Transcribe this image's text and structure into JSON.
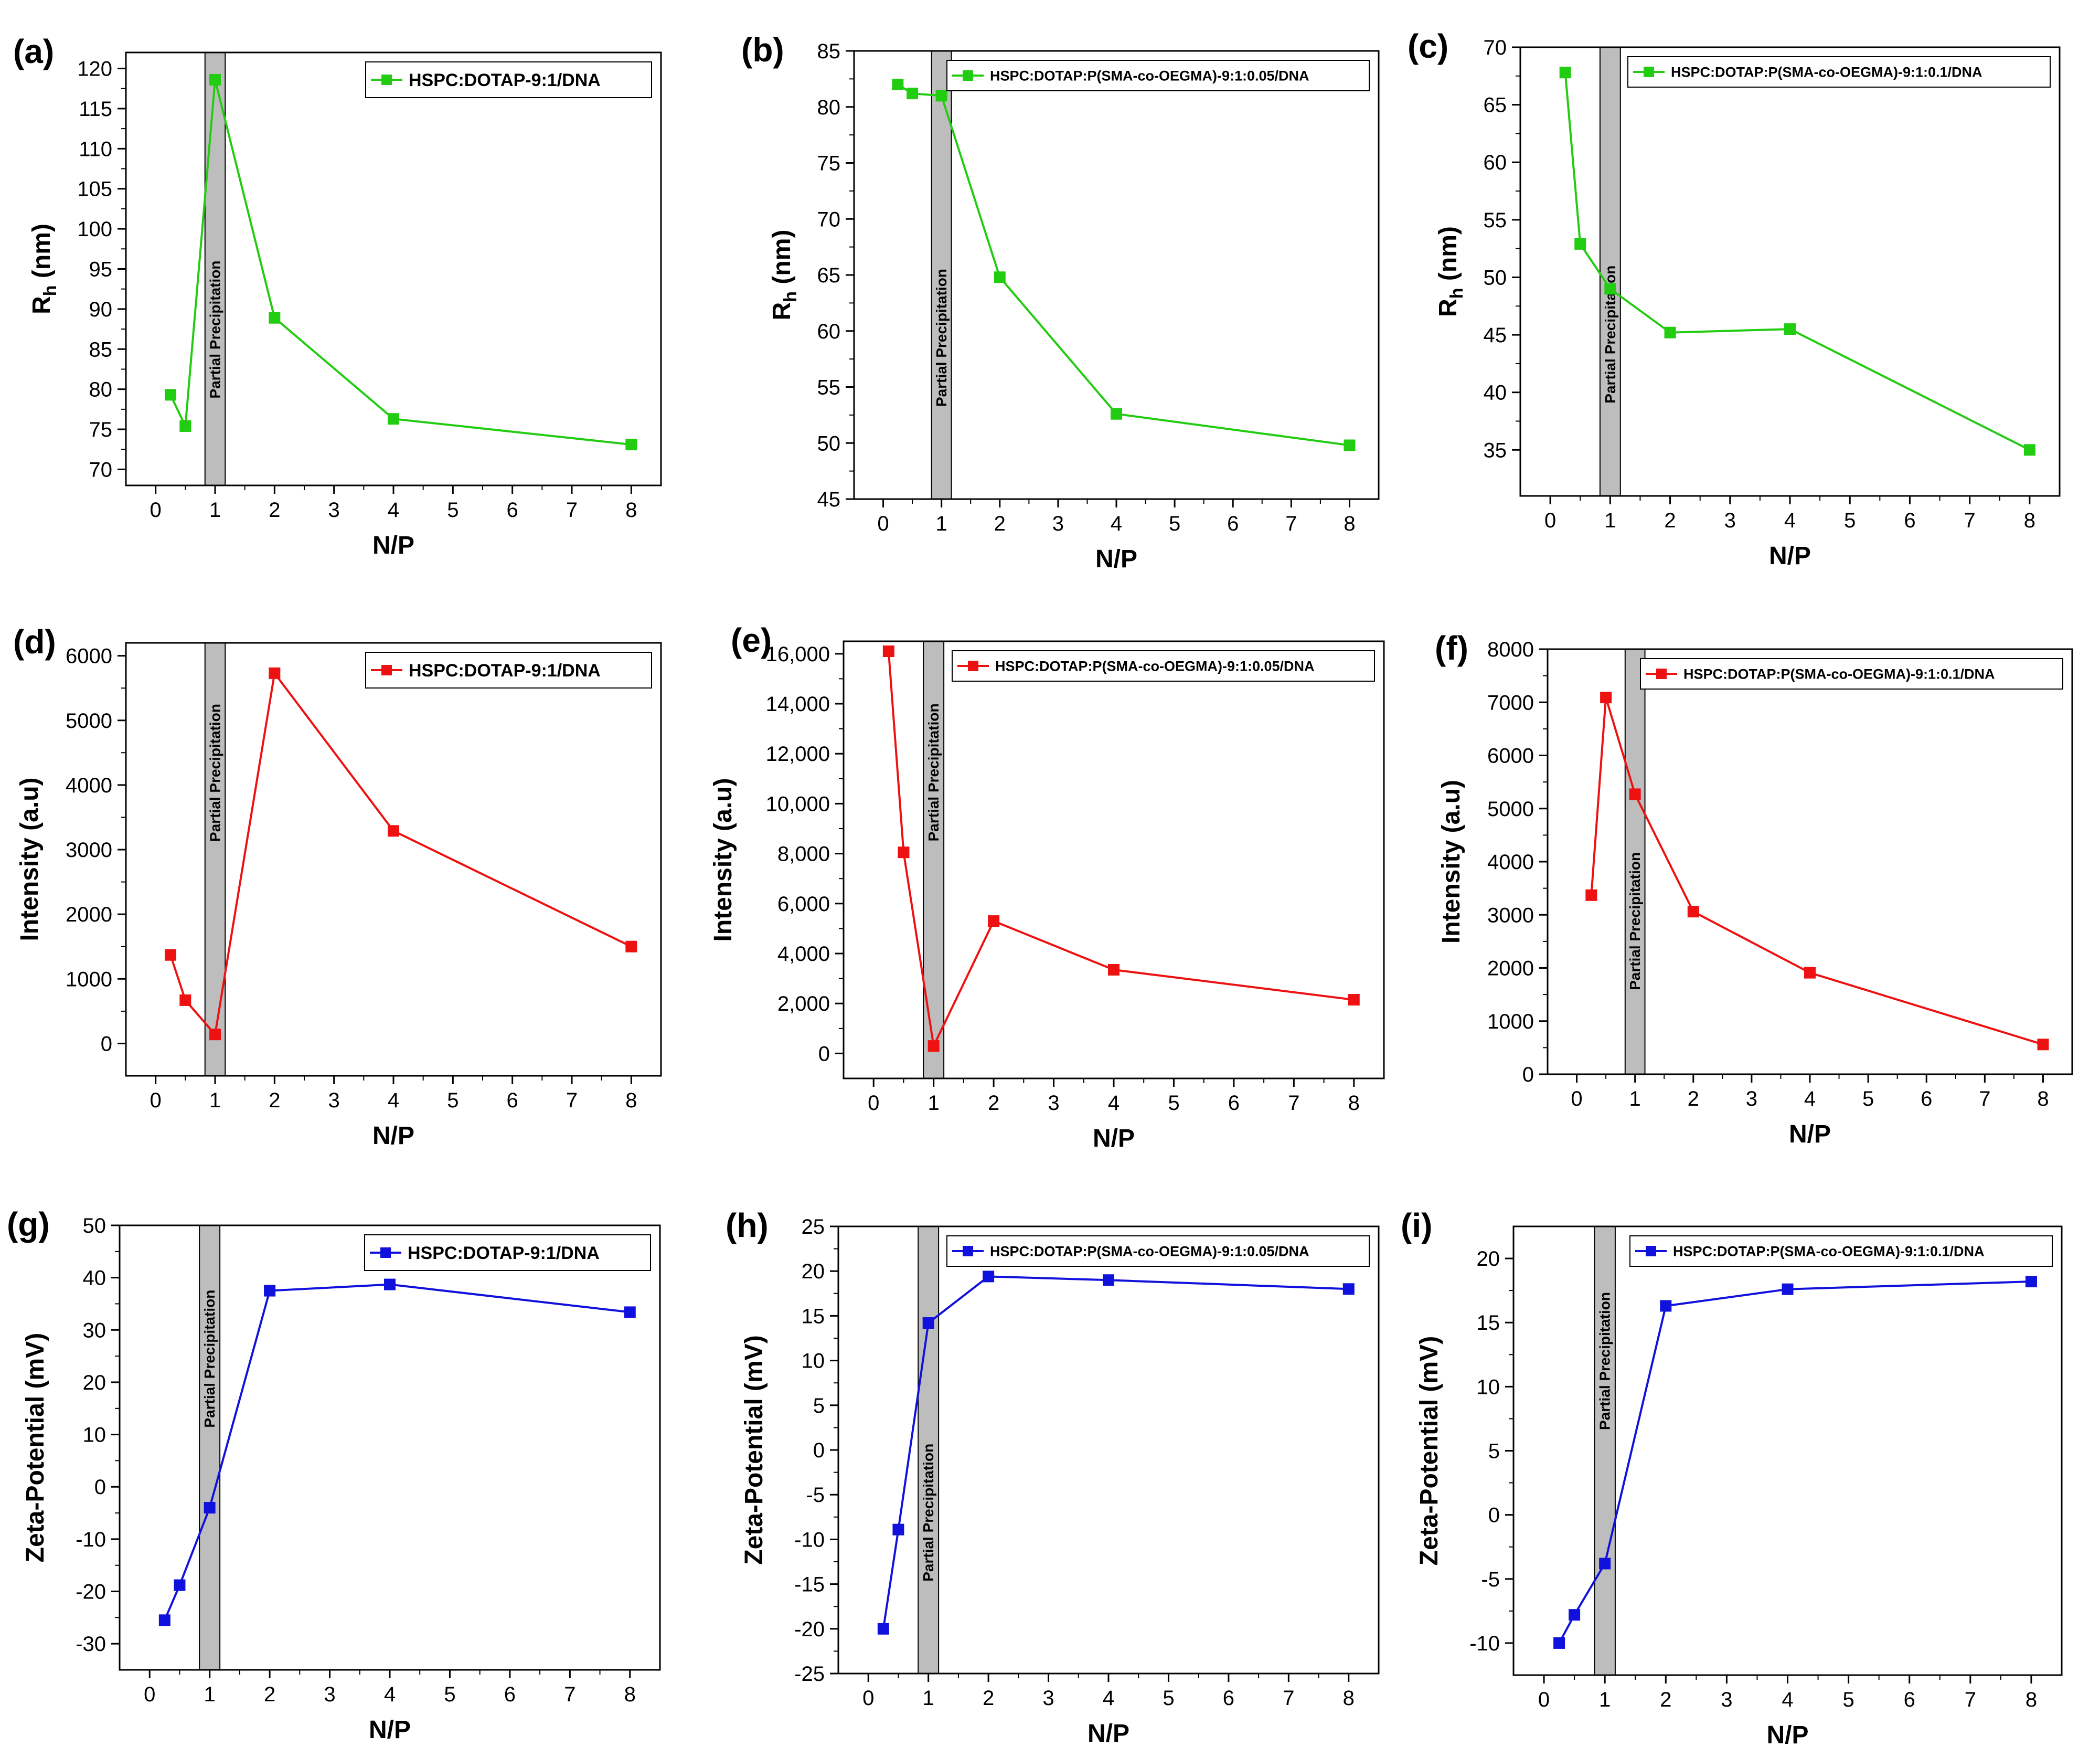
{
  "colors": {
    "green": "#22cc11",
    "red": "#ee1111",
    "blue": "#1111dd",
    "band": "#bdbdbd"
  },
  "chart_data": [
    {
      "id": "a",
      "letter": "(a)",
      "type": "line",
      "xlabel": "N/P",
      "ylabel": "R",
      "ylabel_sub": "h",
      "ylabel_suffix": " (nm)",
      "xlim": [
        -0.5,
        8.5
      ],
      "ylim": [
        68,
        122
      ],
      "xticks": [
        0,
        1,
        2,
        3,
        4,
        5,
        6,
        7,
        8
      ],
      "yticks": [
        70,
        75,
        80,
        85,
        90,
        95,
        100,
        105,
        110,
        115,
        120
      ],
      "ytick_labels": [
        "70",
        "75",
        "80",
        "85",
        "90",
        "95",
        "100",
        "105",
        "110",
        "115",
        "120"
      ],
      "band": {
        "x": [
          0.83,
          1.17
        ],
        "label": "Partial Precipitation"
      },
      "series": [
        {
          "name": "HSPC:DOTAP-9:1/DNA",
          "color": "#22cc11",
          "x": [
            0.25,
            0.5,
            1,
            2,
            4,
            8
          ],
          "y": [
            79.3,
            75.4,
            118.6,
            88.9,
            76.3,
            73.1
          ]
        }
      ]
    },
    {
      "id": "b",
      "letter": "(b)",
      "type": "line",
      "xlabel": "N/P",
      "ylabel": "R",
      "ylabel_sub": "h",
      "ylabel_suffix": " (nm)",
      "xlim": [
        -0.5,
        8.5
      ],
      "ylim": [
        45,
        85
      ],
      "xticks": [
        0,
        1,
        2,
        3,
        4,
        5,
        6,
        7,
        8
      ],
      "yticks": [
        45,
        50,
        55,
        60,
        65,
        70,
        75,
        80,
        85
      ],
      "ytick_labels": [
        "45",
        "50",
        "55",
        "60",
        "65",
        "70",
        "75",
        "80",
        "85"
      ],
      "band": {
        "x": [
          0.83,
          1.17
        ],
        "label": "Partial Precipitation"
      },
      "series": [
        {
          "name": "HSPC:DOTAP:P(SMA-co-OEGMA)-9:1:0.05/DNA",
          "color": "#22cc11",
          "x": [
            0.25,
            0.5,
            1,
            2,
            4,
            8
          ],
          "y": [
            82.0,
            81.2,
            81.0,
            64.8,
            52.6,
            49.8
          ]
        }
      ]
    },
    {
      "id": "c",
      "letter": "(c)",
      "type": "line",
      "xlabel": "N/P",
      "ylabel": "R",
      "ylabel_sub": "h",
      "ylabel_suffix": " (nm)",
      "xlim": [
        -0.5,
        8.5
      ],
      "ylim": [
        31,
        70
      ],
      "xticks": [
        0,
        1,
        2,
        3,
        4,
        5,
        6,
        7,
        8
      ],
      "yticks": [
        35,
        40,
        45,
        50,
        55,
        60,
        65,
        70
      ],
      "ytick_labels": [
        "35",
        "40",
        "45",
        "50",
        "55",
        "60",
        "65",
        "70"
      ],
      "band": {
        "x": [
          0.83,
          1.17
        ],
        "label": "Partial Precipitation"
      },
      "series": [
        {
          "name": "HSPC:DOTAP:P(SMA-co-OEGMA)-9:1:0.1/DNA",
          "color": "#22cc11",
          "x": [
            0.25,
            0.5,
            1,
            2,
            4,
            8
          ],
          "y": [
            67.8,
            52.9,
            49.0,
            45.2,
            45.5,
            35.0
          ]
        }
      ]
    },
    {
      "id": "d",
      "letter": "(d)",
      "type": "line",
      "xlabel": "N/P",
      "ylabel": "Intensity (a.u)",
      "xlim": [
        -0.5,
        8.5
      ],
      "ylim": [
        -500,
        6200
      ],
      "xticks": [
        0,
        1,
        2,
        3,
        4,
        5,
        6,
        7,
        8
      ],
      "yticks": [
        0,
        1000,
        2000,
        3000,
        4000,
        5000,
        6000
      ],
      "ytick_labels": [
        "0",
        "1000",
        "2000",
        "3000",
        "4000",
        "5000",
        "6000"
      ],
      "band": {
        "x": [
          0.83,
          1.17
        ],
        "label": "Partial Precipitation"
      },
      "series": [
        {
          "name": "HSPC:DOTAP-9:1/DNA",
          "color": "#ee1111",
          "x": [
            0.25,
            0.5,
            1,
            2,
            4,
            8
          ],
          "y": [
            1370,
            670,
            140,
            5730,
            3290,
            1500
          ]
        }
      ]
    },
    {
      "id": "e",
      "letter": "(e)",
      "type": "line",
      "xlabel": "N/P",
      "ylabel": "Intensity (a.u)",
      "xlim": [
        -0.5,
        8.5
      ],
      "ylim": [
        -1000,
        16500
      ],
      "xticks": [
        0,
        1,
        2,
        3,
        4,
        5,
        6,
        7,
        8
      ],
      "yticks": [
        0,
        2000,
        4000,
        6000,
        8000,
        10000,
        12000,
        14000,
        16000
      ],
      "ytick_labels": [
        "0",
        "2,000",
        "4,000",
        "6,000",
        "8,000",
        "10,000",
        "12,000",
        "14,000",
        "16,000"
      ],
      "band": {
        "x": [
          0.83,
          1.17
        ],
        "label": "Partial Precipitation"
      },
      "series": [
        {
          "name": "HSPC:DOTAP:P(SMA-co-OEGMA)-9:1:0.05/DNA",
          "color": "#ee1111",
          "x": [
            0.25,
            0.5,
            1,
            2,
            4,
            8
          ],
          "y": [
            16100,
            8050,
            300,
            5300,
            3350,
            2150
          ]
        }
      ]
    },
    {
      "id": "f",
      "letter": "(f)",
      "type": "line",
      "xlabel": "N/P",
      "ylabel": "Intensity (a.u)",
      "xlim": [
        -0.5,
        8.5
      ],
      "ylim": [
        0,
        8000
      ],
      "xticks": [
        0,
        1,
        2,
        3,
        4,
        5,
        6,
        7,
        8
      ],
      "yticks": [
        0,
        1000,
        2000,
        3000,
        4000,
        5000,
        6000,
        7000,
        8000
      ],
      "ytick_labels": [
        "0",
        "1000",
        "2000",
        "3000",
        "4000",
        "5000",
        "6000",
        "7000",
        "8000"
      ],
      "band": {
        "x": [
          0.83,
          1.17
        ],
        "label": "Partial Precipitation"
      },
      "series": [
        {
          "name": "HSPC:DOTAP:P(SMA-co-OEGMA)-9:1:0.1/DNA",
          "color": "#ee1111",
          "x": [
            0.25,
            0.5,
            1,
            2,
            4,
            8
          ],
          "y": [
            3370,
            7090,
            5270,
            3060,
            1910,
            560
          ]
        }
      ]
    },
    {
      "id": "g",
      "letter": "(g)",
      "type": "line",
      "xlabel": "N/P",
      "ylabel": "Zeta-Potential (mV)",
      "xlim": [
        -0.5,
        8.5
      ],
      "ylim": [
        -35,
        50
      ],
      "xticks": [
        0,
        1,
        2,
        3,
        4,
        5,
        6,
        7,
        8
      ],
      "yticks": [
        -30,
        -20,
        -10,
        0,
        10,
        20,
        30,
        40,
        50
      ],
      "ytick_labels": [
        "-30",
        "-20",
        "-10",
        "0",
        "10",
        "20",
        "30",
        "40",
        "50"
      ],
      "band": {
        "x": [
          0.83,
          1.17
        ],
        "label": "Partial Precipitation"
      },
      "series": [
        {
          "name": "HSPC:DOTAP-9:1/DNA",
          "color": "#1111dd",
          "x": [
            0.25,
            0.5,
            1,
            2,
            4,
            8
          ],
          "y": [
            -25.5,
            -18.8,
            -4.0,
            37.5,
            38.7,
            33.4
          ]
        }
      ]
    },
    {
      "id": "h",
      "letter": "(h)",
      "type": "line",
      "xlabel": "N/P",
      "ylabel": "Zeta-Potential (mV)",
      "xlim": [
        -0.5,
        8.5
      ],
      "ylim": [
        -25,
        25
      ],
      "xticks": [
        0,
        1,
        2,
        3,
        4,
        5,
        6,
        7,
        8
      ],
      "yticks": [
        -25,
        -20,
        -15,
        -10,
        -5,
        0,
        5,
        10,
        15,
        20,
        25
      ],
      "ytick_labels": [
        "-25",
        "-20",
        "-15",
        "-10",
        "-5",
        "0",
        "5",
        "10",
        "15",
        "20",
        "25"
      ],
      "band": {
        "x": [
          0.83,
          1.17
        ],
        "label": "Partial Precipitation"
      },
      "series": [
        {
          "name": "HSPC:DOTAP:P(SMA-co-OEGMA)-9:1:0.05/DNA",
          "color": "#1111dd",
          "x": [
            0.25,
            0.5,
            1,
            2,
            4,
            8
          ],
          "y": [
            -20.0,
            -8.9,
            14.2,
            19.4,
            19.0,
            18.0
          ]
        }
      ]
    },
    {
      "id": "i",
      "letter": "(i)",
      "type": "line",
      "xlabel": "N/P",
      "ylabel": "Zeta-Potential (mV)",
      "xlim": [
        -0.5,
        8.5
      ],
      "ylim": [
        -12.5,
        22.5
      ],
      "xticks": [
        0,
        1,
        2,
        3,
        4,
        5,
        6,
        7,
        8
      ],
      "yticks": [
        -10,
        -5,
        0,
        5,
        10,
        15,
        20
      ],
      "ytick_labels": [
        "-10",
        "-5",
        "0",
        "5",
        "10",
        "15",
        "20"
      ],
      "band": {
        "x": [
          0.83,
          1.17
        ],
        "label": "Partial Precipitation"
      },
      "series": [
        {
          "name": "HSPC:DOTAP:P(SMA-co-OEGMA)-9:1:0.1/DNA",
          "color": "#1111dd",
          "x": [
            0.25,
            0.5,
            1,
            2,
            4,
            8
          ],
          "y": [
            -10.0,
            -7.8,
            -3.8,
            16.3,
            17.6,
            18.2
          ]
        }
      ]
    }
  ]
}
